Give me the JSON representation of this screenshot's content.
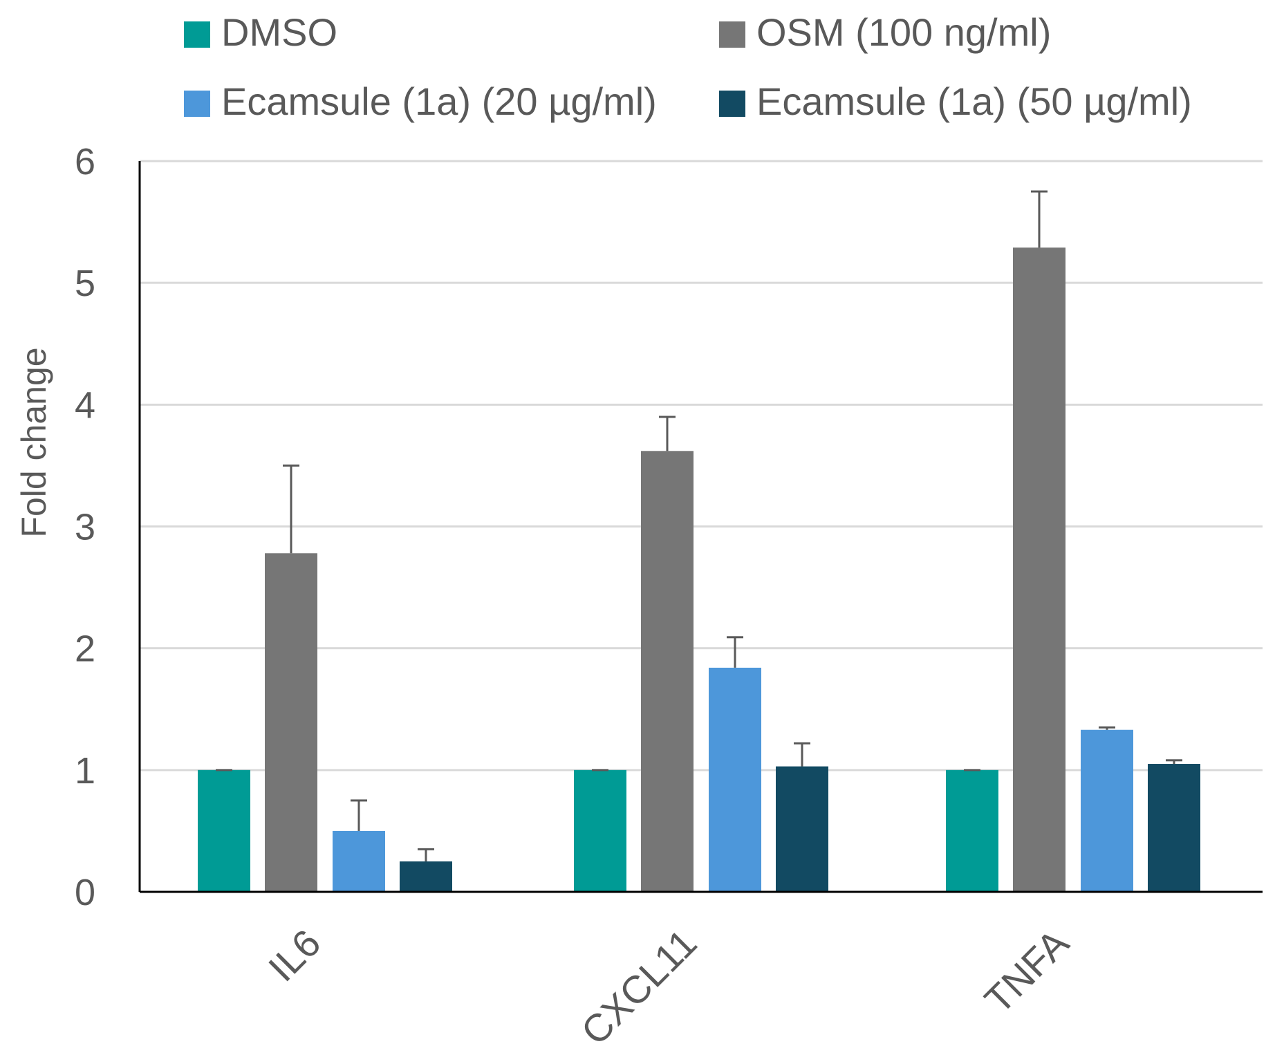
{
  "chart_data": {
    "type": "bar",
    "title": "",
    "xlabel": "",
    "ylabel": "Fold change",
    "ylim": [
      0,
      6
    ],
    "yticks": [
      "0",
      "1",
      "2",
      "3",
      "4",
      "5",
      "6"
    ],
    "grid": true,
    "legend_position": "top",
    "categories": [
      "IL6",
      "CXCL11",
      "TNFA"
    ],
    "series": [
      {
        "name": "DMSO",
        "color": "#009B95",
        "values": [
          1.0,
          1.0,
          1.0
        ],
        "errors": [
          0.0,
          0.0,
          0.0
        ]
      },
      {
        "name": "OSM (100 ng/ml)",
        "color": "#767676",
        "values": [
          2.78,
          3.62,
          5.29
        ],
        "errors": [
          0.72,
          0.28,
          0.46
        ]
      },
      {
        "name": "Ecamsule (1a) (20 µg/ml)",
        "color": "#4D97DA",
        "values": [
          0.5,
          1.84,
          1.33
        ],
        "errors": [
          0.25,
          0.25,
          0.02
        ]
      },
      {
        "name": "Ecamsule (1a) (50 µg/ml)",
        "color": "#124A62",
        "values": [
          0.25,
          1.03,
          1.05
        ],
        "errors": [
          0.1,
          0.19,
          0.03
        ]
      }
    ]
  }
}
